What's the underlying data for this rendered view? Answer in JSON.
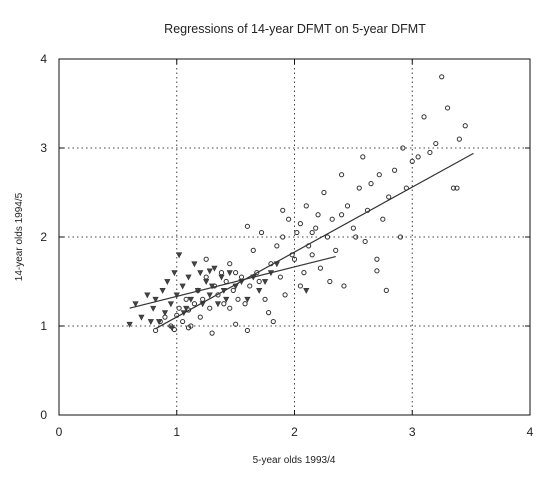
{
  "chart_data": {
    "type": "scatter",
    "title": "Regressions of 14-year DFMT on 5-year DFMT",
    "xlabel": "5-year olds 1993/4",
    "ylabel": "14-year olds 1994/5",
    "xlim": [
      0,
      4
    ],
    "ylim": [
      0,
      4
    ],
    "xticks": [
      "0",
      "1",
      "2",
      "3",
      "4"
    ],
    "yticks": [
      "0",
      "1",
      "2",
      "3",
      "4"
    ],
    "grid": true,
    "series": [
      {
        "marker": "circle",
        "points": [
          [
            0.82,
            0.95
          ],
          [
            0.86,
            1.05
          ],
          [
            0.9,
            1.1
          ],
          [
            0.95,
            1.0
          ],
          [
            0.98,
            0.96
          ],
          [
            1.0,
            1.12
          ],
          [
            1.02,
            1.2
          ],
          [
            1.05,
            1.05
          ],
          [
            1.08,
            1.3
          ],
          [
            1.1,
            1.18
          ],
          [
            1.12,
            1.0
          ],
          [
            1.15,
            1.25
          ],
          [
            1.18,
            1.4
          ],
          [
            1.2,
            1.1
          ],
          [
            1.22,
            1.3
          ],
          [
            1.25,
            1.55
          ],
          [
            1.28,
            1.2
          ],
          [
            1.3,
            0.92
          ],
          [
            1.32,
            1.45
          ],
          [
            1.35,
            1.35
          ],
          [
            1.38,
            1.6
          ],
          [
            1.4,
            1.25
          ],
          [
            1.42,
            1.5
          ],
          [
            1.45,
            1.7
          ],
          [
            1.48,
            1.4
          ],
          [
            1.5,
            1.6
          ],
          [
            1.52,
            1.3
          ],
          [
            1.55,
            1.55
          ],
          [
            1.58,
            1.25
          ],
          [
            1.6,
            0.95
          ],
          [
            1.62,
            1.45
          ],
          [
            1.65,
            1.85
          ],
          [
            1.68,
            1.6
          ],
          [
            1.7,
            1.5
          ],
          [
            1.72,
            2.05
          ],
          [
            1.75,
            1.3
          ],
          [
            1.78,
            1.15
          ],
          [
            1.8,
            1.7
          ],
          [
            1.82,
            1.05
          ],
          [
            1.85,
            1.9
          ],
          [
            1.88,
            1.55
          ],
          [
            1.9,
            2.0
          ],
          [
            1.92,
            1.35
          ],
          [
            1.95,
            2.2
          ],
          [
            1.98,
            1.8
          ],
          [
            2.0,
            1.75
          ],
          [
            2.02,
            2.05
          ],
          [
            2.05,
            1.45
          ],
          [
            2.08,
            1.6
          ],
          [
            2.1,
            2.35
          ],
          [
            2.12,
            1.9
          ],
          [
            2.15,
            1.8
          ],
          [
            2.18,
            2.1
          ],
          [
            2.2,
            2.25
          ],
          [
            2.22,
            1.65
          ],
          [
            2.25,
            2.5
          ],
          [
            2.28,
            2.0
          ],
          [
            2.3,
            1.5
          ],
          [
            2.32,
            2.2
          ],
          [
            2.35,
            1.85
          ],
          [
            2.4,
            2.7
          ],
          [
            2.42,
            1.45
          ],
          [
            2.45,
            2.35
          ],
          [
            2.5,
            2.1
          ],
          [
            2.52,
            2.0
          ],
          [
            2.55,
            2.55
          ],
          [
            2.58,
            2.9
          ],
          [
            2.6,
            1.95
          ],
          [
            2.62,
            2.3
          ],
          [
            2.65,
            2.6
          ],
          [
            2.7,
            1.75
          ],
          [
            2.72,
            2.7
          ],
          [
            2.75,
            2.2
          ],
          [
            2.78,
            1.4
          ],
          [
            2.8,
            2.45
          ],
          [
            2.85,
            2.75
          ],
          [
            2.9,
            2.0
          ],
          [
            2.92,
            3.0
          ],
          [
            2.95,
            2.55
          ],
          [
            3.0,
            2.85
          ],
          [
            3.05,
            2.9
          ],
          [
            3.1,
            3.35
          ],
          [
            3.15,
            2.95
          ],
          [
            3.2,
            3.05
          ],
          [
            3.25,
            3.8
          ],
          [
            3.3,
            3.45
          ],
          [
            3.35,
            2.55
          ],
          [
            3.38,
            2.55
          ],
          [
            3.4,
            3.1
          ],
          [
            3.45,
            3.25
          ],
          [
            1.6,
            2.12
          ],
          [
            1.9,
            2.3
          ],
          [
            2.05,
            2.15
          ],
          [
            2.15,
            2.05
          ],
          [
            2.7,
            1.62
          ],
          [
            1.25,
            1.75
          ],
          [
            1.45,
            1.2
          ],
          [
            1.1,
            0.98
          ],
          [
            1.5,
            1.02
          ],
          [
            2.4,
            2.25
          ]
        ]
      },
      {
        "marker": "triangle-down",
        "points": [
          [
            0.6,
            1.02
          ],
          [
            0.65,
            1.25
          ],
          [
            0.7,
            1.1
          ],
          [
            0.75,
            1.35
          ],
          [
            0.8,
            1.2
          ],
          [
            0.82,
            1.3
          ],
          [
            0.85,
            1.05
          ],
          [
            0.88,
            1.4
          ],
          [
            0.9,
            1.15
          ],
          [
            0.92,
            1.5
          ],
          [
            0.95,
            1.25
          ],
          [
            0.98,
            1.6
          ],
          [
            1.0,
            1.35
          ],
          [
            1.02,
            1.8
          ],
          [
            1.05,
            1.45
          ],
          [
            1.08,
            1.2
          ],
          [
            1.1,
            1.55
          ],
          [
            1.12,
            1.3
          ],
          [
            1.15,
            1.7
          ],
          [
            1.18,
            1.4
          ],
          [
            1.2,
            1.6
          ],
          [
            1.22,
            1.25
          ],
          [
            1.25,
            1.5
          ],
          [
            1.28,
            1.35
          ],
          [
            1.3,
            1.45
          ],
          [
            1.32,
            1.65
          ],
          [
            1.35,
            1.25
          ],
          [
            1.38,
            1.55
          ],
          [
            1.4,
            1.4
          ],
          [
            1.42,
            1.3
          ],
          [
            1.45,
            1.6
          ],
          [
            1.5,
            1.45
          ],
          [
            1.55,
            1.5
          ],
          [
            1.6,
            1.3
          ],
          [
            1.65,
            1.55
          ],
          [
            1.7,
            1.4
          ],
          [
            1.75,
            1.5
          ],
          [
            1.8,
            1.6
          ],
          [
            1.85,
            1.7
          ],
          [
            2.1,
            1.4
          ],
          [
            0.78,
            1.05
          ],
          [
            0.96,
            0.98
          ],
          [
            1.06,
            1.15
          ],
          [
            1.28,
            1.62
          ]
        ]
      }
    ],
    "lines": [
      {
        "x": [
          0.82,
          3.52
        ],
        "y": [
          0.97,
          2.94
        ]
      },
      {
        "x": [
          0.6,
          2.35
        ],
        "y": [
          1.2,
          1.78
        ]
      }
    ]
  }
}
